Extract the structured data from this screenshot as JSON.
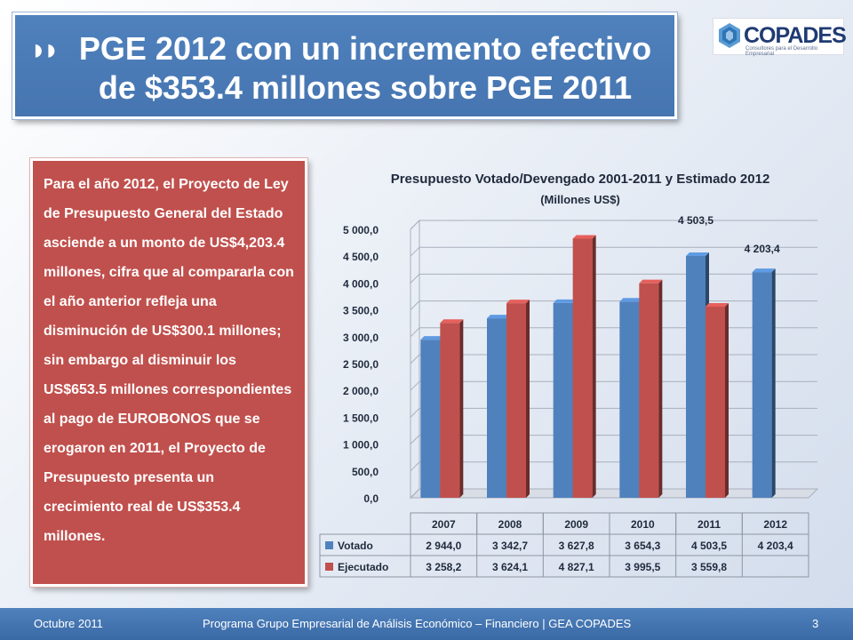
{
  "header": {
    "title_marks": "◗◗",
    "title": "PGE 2012 con un incremento efectivo de $353.4 millones sobre PGE 2011",
    "logo_word": "COPADES",
    "logo_tagline": "Consultores para el Desarrollo Empresarial"
  },
  "body_text": "Para el año 2012, el Proyecto de Ley de Presupuesto General del Estado asciende a un monto de US$4,203.4 millones, cifra que al compararla con el año anterior refleja una disminución de US$300.1 millones; sin embargo al disminuir los US$653.5 millones correspondientes al pago de EUROBONOS que se erogaron en 2011, el Proyecto de Presupuesto presenta un crecimiento real de US$353.4 millones.",
  "chart_data": {
    "type": "bar",
    "title": "Presupuesto Votado/Devengado  2001-2011 y Estimado  2012",
    "subtitle": "(Millones US$)",
    "categories": [
      "2007",
      "2008",
      "2009",
      "2010",
      "2011",
      "2012"
    ],
    "series": [
      {
        "name": "Votado",
        "color": "#4f81bd",
        "values": [
          2944.0,
          3342.7,
          3627.8,
          3654.3,
          4503.5,
          4203.4
        ],
        "labels": [
          "2 944,0",
          "3 342,7",
          "3 627,8",
          "3 654,3",
          "4 503,5",
          "4 203,4"
        ]
      },
      {
        "name": "Ejecutado",
        "color": "#c0504d",
        "values": [
          3258.2,
          3624.1,
          4827.1,
          3995.5,
          3559.8,
          null
        ],
        "labels": [
          "3 258,2",
          "3 624,1",
          "4 827,1",
          "3 995,5",
          "3 559,8",
          ""
        ]
      }
    ],
    "annotations": [
      {
        "text": "4 503,5",
        "category": "2011",
        "series": "Votado"
      },
      {
        "text": "4 203,4",
        "category": "2012",
        "series": "Votado"
      }
    ],
    "ylim": [
      0,
      5000
    ],
    "yticks": [
      0,
      500,
      1000,
      1500,
      2000,
      2500,
      3000,
      3500,
      4000,
      4500,
      5000
    ],
    "ytick_labels": [
      "0,0",
      "500,0",
      "1 000,0",
      "1 500,0",
      "2 000,0",
      "2 500,0",
      "3 000,0",
      "3 500,0",
      "4 000,0",
      "4 500,0",
      "5 000,0"
    ],
    "grid": true,
    "legend": "data-table"
  },
  "footer": {
    "date": "Octubre 2011",
    "program": "Programa Grupo Empresarial de Análisis Económico – Financiero | GEA COPADES",
    "page": "3"
  }
}
